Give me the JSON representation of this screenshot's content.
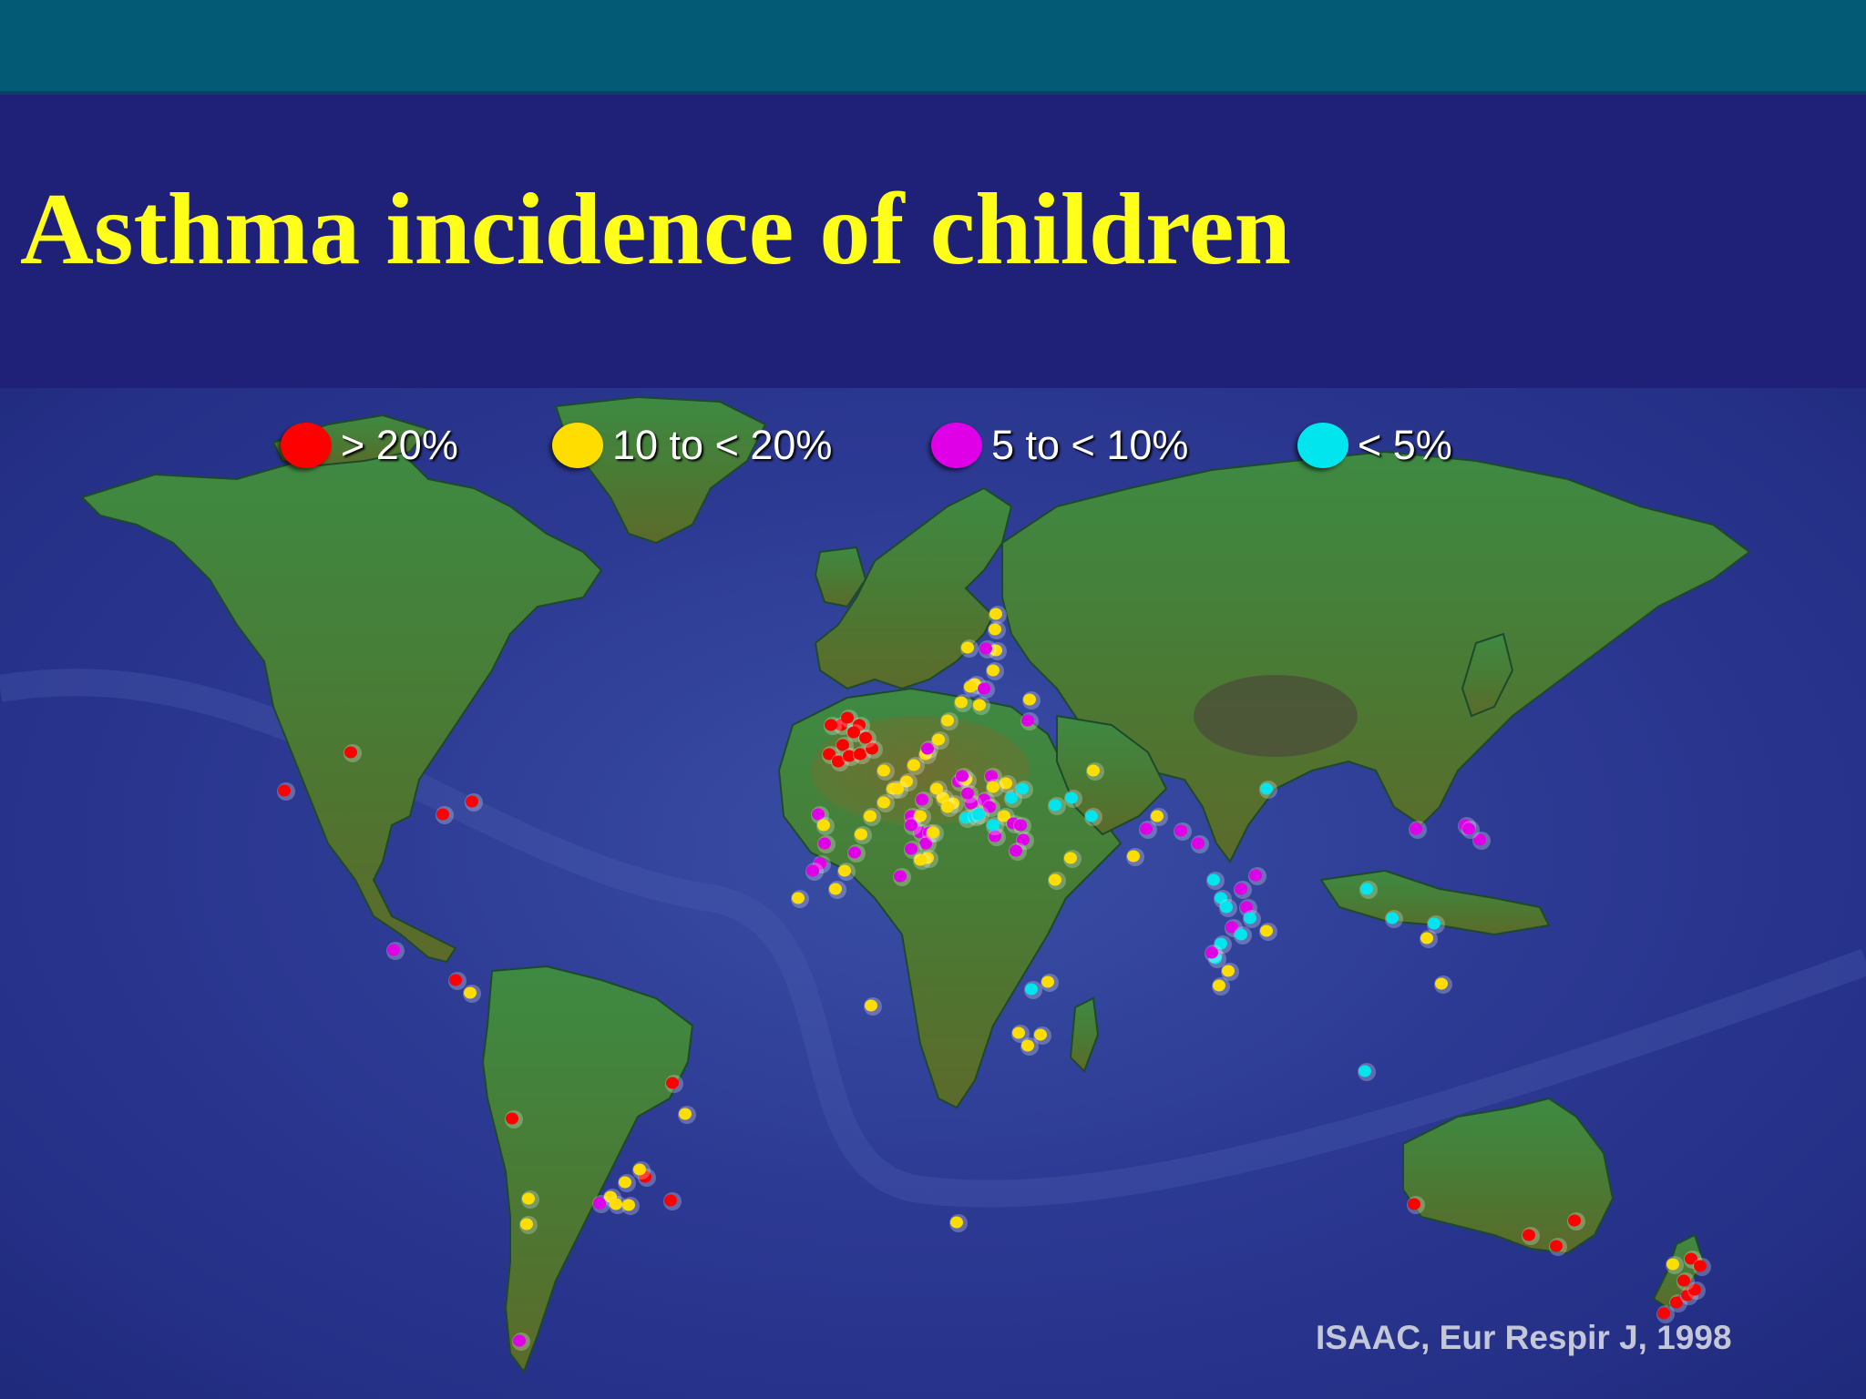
{
  "slide": {
    "title": "Asthma incidence of children",
    "source": "ISAAC, Eur Respir J, 1998"
  },
  "colors": {
    "header_band": "#035a74",
    "background": "#1e2177",
    "title": "#ffff1a",
    "ocean": "#2d3a93",
    "land": "#3f7a3a"
  },
  "legend": [
    {
      "label": "> 20%",
      "color": "#ff0000"
    },
    {
      "label": "10 to < 20%",
      "color": "#ffdd00"
    },
    {
      "label": "5 to < 10%",
      "color": "#e000e8"
    },
    {
      "label": "< 5%",
      "color": "#00e5ee"
    }
  ],
  "map": {
    "type": "world map with study-centre markers",
    "categories": [
      "> 20%",
      "10 to < 20%",
      "5 to < 10%",
      "< 5%"
    ],
    "marker_colors": [
      "#ff0000",
      "#ffdd00",
      "#e000e8",
      "#00e5ee"
    ]
  }
}
